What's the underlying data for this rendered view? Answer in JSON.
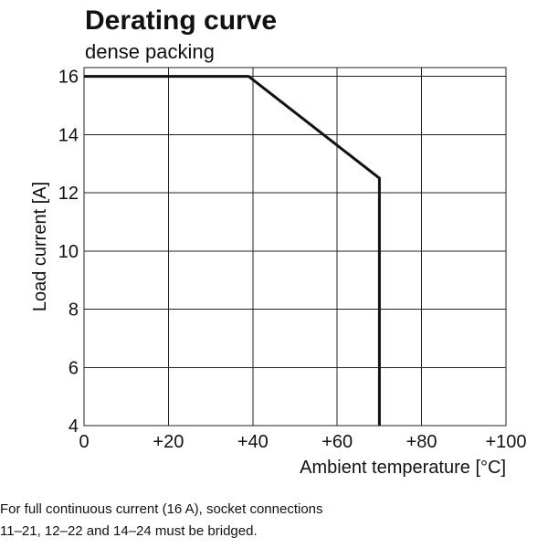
{
  "chart_data": {
    "type": "line",
    "title": "Derating curve",
    "subtitle": "dense packing",
    "xlabel": "Ambient temperature [°C]",
    "ylabel": "Load current [A]",
    "xlim": [
      0,
      100
    ],
    "ylim": [
      4,
      16.3
    ],
    "x_ticks": [
      0,
      20,
      40,
      60,
      80,
      100
    ],
    "x_tick_labels": [
      "0",
      "+20",
      "+40",
      "+60",
      "+80",
      "+100"
    ],
    "y_ticks": [
      4,
      6,
      8,
      10,
      12,
      14,
      16
    ],
    "y_tick_labels": [
      "4",
      "6",
      "8",
      "10",
      "12",
      "14",
      "16"
    ],
    "grid": true,
    "series": [
      {
        "x": [
          0,
          39,
          70,
          70
        ],
        "y": [
          16,
          16,
          12.5,
          4
        ]
      }
    ]
  },
  "note_lines": [
    "For full continuous current (16 A), socket connections",
    "11–21, 12–22 and 14–24 must be bridged."
  ]
}
